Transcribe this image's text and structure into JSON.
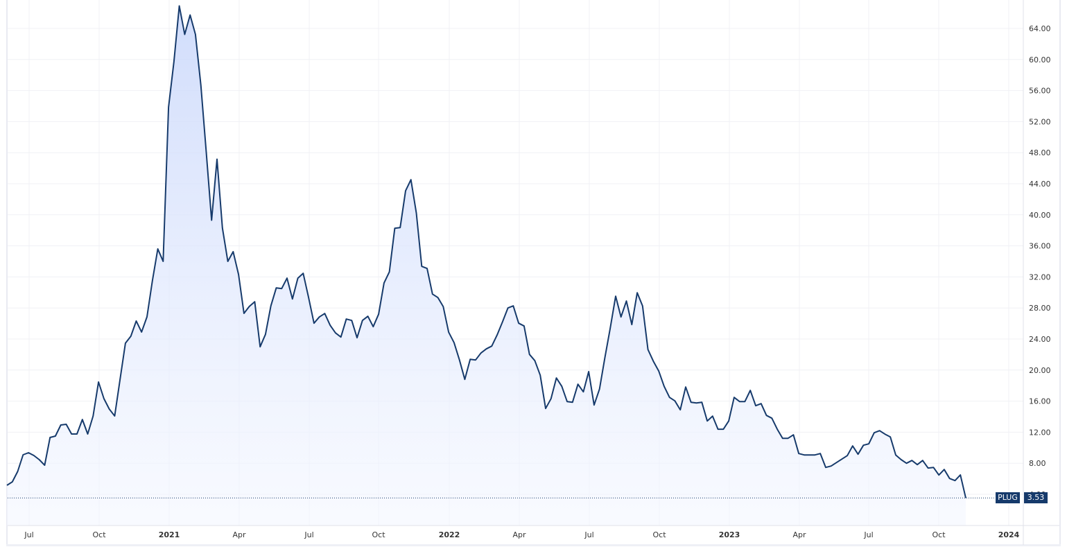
{
  "chart_data": {
    "type": "area",
    "title": "",
    "ticker": "PLUG",
    "last_value": "3.53",
    "xlabel": "",
    "ylabel": "",
    "ylim": [
      2.0,
      66.0
    ],
    "grid": true,
    "legend": "none",
    "y_ticks": [
      "64.00",
      "60.00",
      "56.00",
      "52.00",
      "48.00",
      "44.00",
      "40.00",
      "36.00",
      "32.00",
      "28.00",
      "24.00",
      "20.00",
      "16.00",
      "12.00",
      "8.00",
      "4.00"
    ],
    "x_ticks": [
      {
        "label": "Jul",
        "year": false
      },
      {
        "label": "Oct",
        "year": false
      },
      {
        "label": "2021",
        "year": true
      },
      {
        "label": "Apr",
        "year": false
      },
      {
        "label": "Jul",
        "year": false
      },
      {
        "label": "Oct",
        "year": false
      },
      {
        "label": "2022",
        "year": true
      },
      {
        "label": "Apr",
        "year": false
      },
      {
        "label": "Jul",
        "year": false
      },
      {
        "label": "Oct",
        "year": false
      },
      {
        "label": "2023",
        "year": true
      },
      {
        "label": "Apr",
        "year": false
      },
      {
        "label": "Jul",
        "year": false
      },
      {
        "label": "Oct",
        "year": false
      },
      {
        "label": "2024",
        "year": true
      }
    ],
    "x_range": "Jun 2020 - Nov 2023 (weekly)",
    "series": [
      {
        "name": "PLUG",
        "color": "#163a6b",
        "values": [
          5.16,
          5.61,
          6.95,
          9.09,
          9.36,
          9.0,
          8.46,
          7.75,
          11.32,
          11.5,
          12.93,
          13.02,
          11.77,
          11.77,
          13.63,
          11.77,
          14.09,
          18.46,
          16.32,
          14.98,
          14.09,
          18.82,
          23.46,
          24.36,
          26.32,
          24.9,
          26.86,
          31.5,
          35.61,
          34.0,
          53.86,
          59.75,
          66.9,
          63.23,
          65.73,
          63.23,
          56.71,
          48.05,
          39.3,
          47.16,
          38.3,
          34.0,
          35.25,
          32.3,
          27.3,
          28.2,
          28.8,
          23.0,
          24.6,
          28.27,
          30.59,
          30.5,
          31.84,
          29.16,
          31.84,
          32.46,
          29.34,
          26.04,
          26.84,
          27.29,
          25.77,
          24.79,
          24.25,
          26.57,
          26.39,
          24.16,
          26.39,
          26.93,
          25.59,
          27.2,
          31.21,
          32.64,
          38.27,
          38.36,
          43.09,
          44.52,
          40.23,
          33.36,
          33.09,
          29.79,
          29.34,
          28.18,
          24.88,
          23.54,
          21.3,
          18.8,
          21.39,
          21.3,
          22.2,
          22.73,
          23.09,
          24.52,
          26.21,
          28.0,
          28.27,
          26.04,
          25.68,
          22.02,
          21.21,
          19.34,
          15.05,
          16.3,
          18.98,
          17.91,
          15.95,
          15.86,
          18.18,
          17.2,
          19.8,
          15.5,
          17.55,
          21.57,
          25.41,
          29.52,
          26.84,
          28.89,
          25.86,
          29.96,
          28.27,
          22.64,
          21.13,
          19.88,
          17.91,
          16.48,
          16.04,
          14.88,
          17.82,
          15.86,
          15.77,
          15.86,
          13.45,
          14.07,
          12.38,
          12.38,
          13.45,
          16.48,
          15.95,
          15.95,
          17.38,
          15.41,
          15.68,
          14.16,
          13.8,
          12.38,
          11.21,
          11.21,
          11.66,
          9.25,
          9.07,
          9.07,
          9.07,
          9.25,
          7.46,
          7.64,
          8.09,
          8.54,
          8.98,
          10.23,
          9.16,
          10.32,
          10.5,
          11.93,
          12.2,
          11.75,
          11.38,
          9.05,
          8.46,
          8.0,
          8.36,
          7.82,
          8.36,
          7.38,
          7.46,
          6.48,
          7.2,
          6.04,
          5.77,
          6.5,
          3.53
        ]
      }
    ]
  },
  "price_tag": {
    "ticker": "PLUG",
    "value": "3.53",
    "bg_color": "#163a6b"
  }
}
